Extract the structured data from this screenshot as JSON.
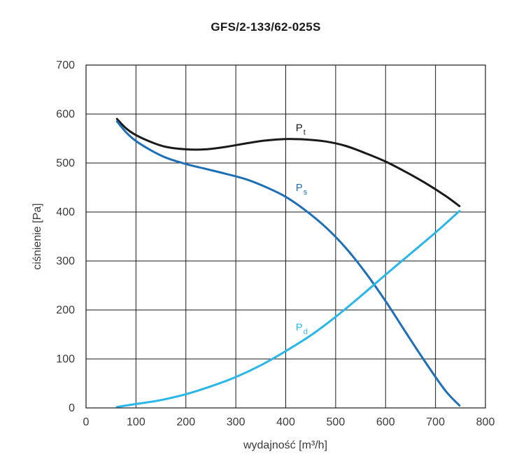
{
  "chart_data": {
    "type": "line",
    "title": "GFS/2-133/62-025S",
    "xlabel": "wydajność [m³/h]",
    "ylabel": "ciśnienie [Pa]",
    "xlim": [
      0,
      800
    ],
    "ylim": [
      0,
      700
    ],
    "x_ticks": [
      "0",
      "100",
      "200",
      "300",
      "400",
      "500",
      "600",
      "700",
      "800"
    ],
    "y_ticks": [
      "0",
      "100",
      "200",
      "300",
      "400",
      "500",
      "600",
      "700"
    ],
    "grid": true,
    "series": [
      {
        "name": "Pt",
        "label_main": "P",
        "label_sub": "t",
        "color": "#1a1a1a",
        "x": [
          62,
          80,
          100,
          130,
          160,
          200,
          240,
          280,
          320,
          360,
          400,
          440,
          480,
          520,
          560,
          600,
          640,
          680,
          720,
          748
        ],
        "y": [
          590,
          571,
          557,
          543,
          533,
          528,
          528,
          533,
          540,
          546,
          549,
          548,
          544,
          535,
          520,
          503,
          482,
          459,
          433,
          412
        ]
      },
      {
        "name": "Ps",
        "label_main": "P",
        "label_sub": "s",
        "color": "#1e6fb8",
        "x": [
          62,
          80,
          100,
          130,
          160,
          200,
          240,
          280,
          320,
          360,
          400,
          440,
          480,
          520,
          560,
          600,
          640,
          680,
          720,
          748
        ],
        "y": [
          585,
          563,
          545,
          526,
          511,
          498,
          488,
          478,
          467,
          451,
          431,
          403,
          369,
          327,
          276,
          218,
          155,
          93,
          35,
          5
        ]
      },
      {
        "name": "Pd",
        "label_main": "P",
        "label_sub": "d",
        "color": "#29b7ea",
        "x": [
          62,
          100,
          150,
          200,
          250,
          300,
          350,
          400,
          450,
          500,
          550,
          600,
          650,
          700,
          748
        ],
        "y": [
          2,
          8,
          16,
          28,
          44,
          63,
          87,
          116,
          148,
          186,
          228,
          272,
          315,
          358,
          402
        ]
      }
    ],
    "label_positions": [
      {
        "name": "Pt",
        "x": 420,
        "y": 565
      },
      {
        "name": "Ps",
        "x": 420,
        "y": 443
      },
      {
        "name": "Pd",
        "x": 420,
        "y": 158
      }
    ]
  }
}
